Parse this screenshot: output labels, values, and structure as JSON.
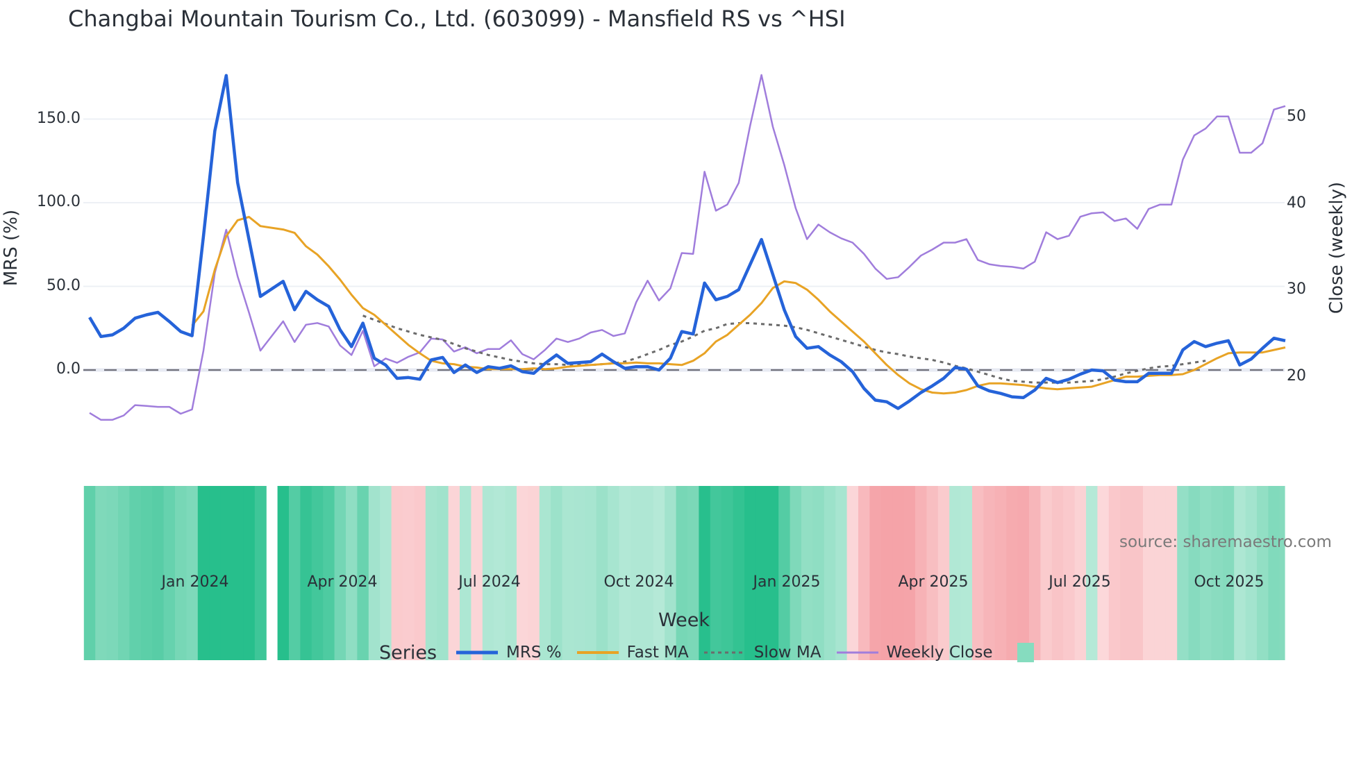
{
  "title": "Changbai Mountain Tourism Co., Ltd. (603099) - Mansfield RS vs ^HSI",
  "source_label": "source: sharemaestro.com",
  "legend": {
    "title": "Series",
    "items": [
      {
        "label": "MRS %",
        "color": "#2563d9",
        "style": "solid-thick"
      },
      {
        "label": "Fast MA",
        "color": "#e8a325",
        "style": "solid"
      },
      {
        "label": "Slow MA",
        "color": "#6b6b6b",
        "style": "dotted"
      },
      {
        "label": "Weekly Close",
        "color": "#a07ddc",
        "style": "solid-thin"
      },
      {
        "label": "",
        "color": "#86dcbf",
        "style": "box"
      }
    ]
  },
  "colors": {
    "mrs": "#2563d9",
    "fast_ma": "#e8a325",
    "slow_ma": "#6b6b6b",
    "close": "#a07ddc",
    "zero_line": "#6f6f7a",
    "grid": "#edf0f5",
    "heat_pos": "#27bf8c",
    "heat_neg": "#f5a3a8"
  },
  "chart_data": {
    "type": "line",
    "title": "Changbai Mountain Tourism Co., Ltd. (603099) - Mansfield RS vs ^HSI",
    "xlabel": "Week",
    "ylabel": "MRS (%)",
    "y2label": "Close (weekly)",
    "ylim": [
      -45,
      185
    ],
    "y_ticks": [
      "150.0",
      "100.0",
      "50.0",
      "0.0"
    ],
    "y2_ticks": [
      "50",
      "40",
      "30",
      "20"
    ],
    "x_ticks": [
      "Jan 2024",
      "Apr 2024",
      "Jul 2024",
      "Oct 2024",
      "Jan 2025",
      "Apr 2025",
      "Jul 2025",
      "Oct 2025"
    ],
    "legend_position": "bottom",
    "grid": true,
    "zero_line": "dashed",
    "gap_index": 16,
    "series": [
      {
        "name": "MRS %",
        "axis": "left",
        "values": [
          31.5,
          20,
          21,
          25,
          31,
          33,
          34.5,
          29,
          23,
          20.5,
          80,
          143,
          176,
          112,
          78,
          44,
          null,
          53,
          36,
          47,
          42,
          38,
          24,
          14,
          28,
          7,
          3,
          -5,
          -4.5,
          -5.5,
          6,
          7.5,
          -1.5,
          3,
          -1.5,
          2,
          1,
          2.5,
          -1,
          -2,
          4,
          9,
          4,
          4.5,
          5,
          9.5,
          5,
          1,
          2,
          2,
          0,
          7,
          23,
          21.5,
          52,
          42,
          44,
          48,
          63,
          78,
          57,
          36,
          20,
          13,
          14,
          9,
          5,
          -1,
          -11,
          -18,
          -19,
          -23,
          -18.5,
          -13.5,
          -9.5,
          -5,
          1.5,
          0.5,
          -9.5,
          -12.5,
          -14,
          -16,
          -16.5,
          -12,
          -5,
          -7.5,
          -5.5,
          -2.5,
          0,
          -0.5,
          -6,
          -7,
          -7,
          -2,
          -2,
          -2,
          12,
          17,
          14,
          16,
          17.5,
          3,
          6.5,
          13,
          19,
          17.5
        ]
      },
      {
        "name": "Fast MA",
        "axis": "left",
        "values": [
          null,
          null,
          null,
          null,
          null,
          null,
          null,
          null,
          null,
          26.5,
          35,
          60,
          80,
          89.5,
          91.5,
          86,
          null,
          84,
          82,
          74,
          69,
          62,
          54,
          45,
          37,
          33,
          27,
          21,
          15,
          10,
          5.5,
          4,
          3.5,
          2,
          1.5,
          0.5,
          0.5,
          0.5,
          0.5,
          1,
          0.5,
          1,
          2,
          2.5,
          3,
          3.5,
          4,
          4,
          4.5,
          4,
          4,
          3.5,
          3,
          5.5,
          10,
          17,
          21,
          27,
          33,
          40,
          49,
          53,
          52,
          48,
          42,
          35,
          29,
          23,
          17,
          10,
          3,
          -3,
          -8,
          -11.5,
          -13.5,
          -14,
          -13.5,
          -12,
          -9.5,
          -8,
          -8,
          -8.5,
          -9,
          -10,
          -11,
          -11.5,
          -11,
          -10.5,
          -10,
          -8,
          -6,
          -4,
          -4,
          -3.5,
          -3,
          -3,
          -2.5,
          0,
          3.5,
          7,
          10,
          10.5,
          10.5,
          10.5,
          12,
          13.5
        ]
      },
      {
        "name": "Slow MA",
        "axis": "left",
        "values": [
          null,
          null,
          null,
          null,
          null,
          null,
          null,
          null,
          null,
          null,
          null,
          null,
          null,
          null,
          null,
          null,
          null,
          null,
          null,
          null,
          null,
          null,
          null,
          null,
          32.5,
          30,
          27.5,
          25,
          23,
          21,
          19.5,
          18,
          15.5,
          13,
          11,
          9,
          7.5,
          6,
          5,
          4,
          3.5,
          3.5,
          3,
          3,
          3,
          3.5,
          4,
          5,
          7,
          9.5,
          12,
          15,
          17,
          20,
          23.5,
          25,
          27.5,
          28,
          28,
          27.5,
          27,
          26.5,
          25.5,
          24,
          22,
          20,
          18,
          16,
          14,
          12,
          10.5,
          9.5,
          8,
          7,
          6,
          4.5,
          2.5,
          1,
          -1,
          -3,
          -5,
          -6.5,
          -7,
          -7.5,
          -7.5,
          -7.5,
          -7.5,
          -7,
          -6.5,
          -5.5,
          -4,
          -2,
          -0.5,
          1,
          2,
          2.5,
          3.5,
          4.5,
          5.5
        ]
      },
      {
        "name": "Weekly Close",
        "axis": "right",
        "values": [
          15.8,
          15.0,
          15.0,
          15.5,
          16.7,
          16.6,
          16.5,
          16.5,
          15.7,
          16.2,
          23,
          32,
          37,
          31.6,
          27.4,
          23,
          null,
          26.4,
          24,
          26,
          26.2,
          25.8,
          23.6,
          22.5,
          25.3,
          21.2,
          22.1,
          21.6,
          22.3,
          22.8,
          24.4,
          24.3,
          22.9,
          23.4,
          22.7,
          23.2,
          23.2,
          24.2,
          22.6,
          22.0,
          23.1,
          24.4,
          24.0,
          24.4,
          25.1,
          25.4,
          24.7,
          25.0,
          28.6,
          31.1,
          28.8,
          30.2,
          34.3,
          34.2,
          43.7,
          39.2,
          39.9,
          42.4,
          49.0,
          54.9,
          48.9,
          44.5,
          39.5,
          35.9,
          37.6,
          36.7,
          36.0,
          35.5,
          34.2,
          32.5,
          31.3,
          31.5,
          32.7,
          34.0,
          34.7,
          35.5,
          35.5,
          35.9,
          33.5,
          33.0,
          32.8,
          32.7,
          32.5,
          33.3,
          36.7,
          35.9,
          36.3,
          38.5,
          38.9,
          39.0,
          38.0,
          38.3,
          37.1,
          39.4,
          39.9,
          39.9,
          45.1,
          47.9,
          48.7,
          50.1,
          50.1,
          45.9,
          45.9,
          47.0,
          50.9,
          51.3
        ]
      }
    ]
  }
}
